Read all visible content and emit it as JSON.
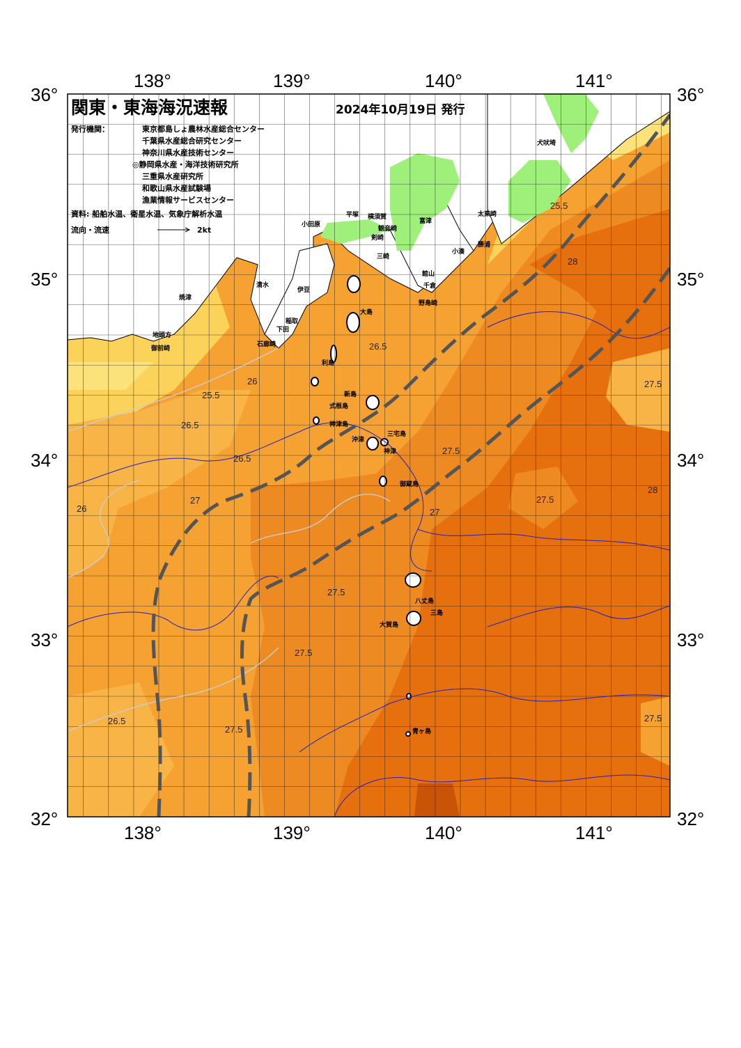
{
  "title": "関東・東海海況速報",
  "issue_date": "2024年10月19日 発行",
  "agencies_label": "発行機関：",
  "agencies": [
    "東京都島しょ農林水産総合センター",
    "千葉県水産総合研究センター",
    "神奈川県水産技術センター",
    "◎静岡県水産・海洋技術研究所",
    "三重県水産研究所",
    "和歌山県水産試験場",
    "漁業情報サービスセンター"
  ],
  "sources": "資料: 船舶水温、衛星水温、気象庁解析水温",
  "flow_legend_label": "流向・流速",
  "flow_legend_value": "2kt",
  "colors": {
    "sst_25_5": "#fbe27a",
    "sst_26": "#fbd35a",
    "sst_26_5": "#f9b447",
    "sst_27": "#f5a232",
    "sst_27_5": "#ee8a22",
    "sst_28": "#e6700e",
    "sst_28_5": "#c95408",
    "land": "#ffffff",
    "lowland_green": "#9ef07a",
    "current_axis": "#555555",
    "isotherm": "#2020c0"
  },
  "axes": {
    "lon_ticks": [
      "138°",
      "139°",
      "140°",
      "141°"
    ],
    "lat_ticks": [
      "36°",
      "35°",
      "34°",
      "33°",
      "32°"
    ]
  },
  "place_names": [
    "小田原",
    "平塚",
    "横須賀",
    "観音崎",
    "剣崎",
    "富津",
    "三崎",
    "館山",
    "千倉",
    "野島崎",
    "小湊",
    "勝浦",
    "太東崎",
    "犬吠埼",
    "伊豆",
    "稲取",
    "下田",
    "大島",
    "石廊崎",
    "御前崎",
    "焼津",
    "清水",
    "利島",
    "新島",
    "式根島",
    "神津島",
    "三宅島",
    "御蔵島",
    "神津",
    "八丈島",
    "三島",
    "大賀島",
    "青ヶ島",
    "地頭方",
    "沖津"
  ],
  "isotherm_labels": [
    "25.5",
    "26",
    "26.5",
    "27",
    "27.5",
    "28"
  ]
}
